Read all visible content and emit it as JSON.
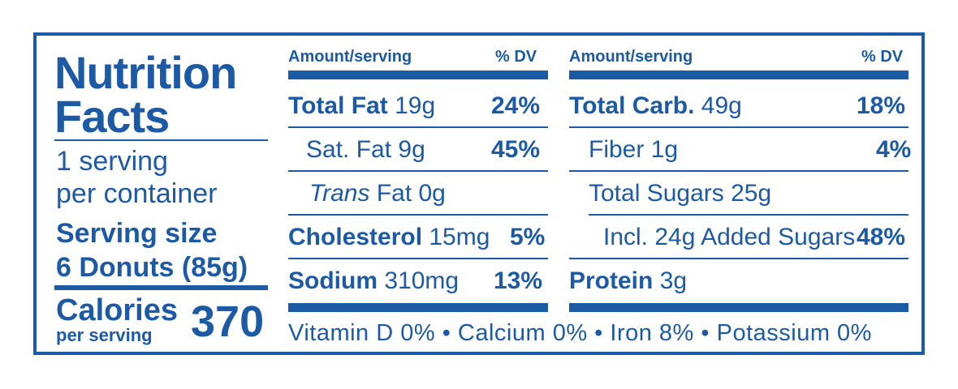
{
  "title_line1": "Nutrition",
  "title_line2": "Facts",
  "servings_line1": "1 serving",
  "servings_line2": "per container",
  "serving_size_label": "Serving size",
  "serving_size_value": "6 Donuts (85g)",
  "calories_label": "Calories",
  "calories_sublabel": "per serving",
  "calories_value": "370",
  "col1": {
    "header_amount": "Amount/serving",
    "header_dv": "% DV",
    "rows": [
      {
        "name": "Total Fat",
        "amount": "19g",
        "dv": "24%"
      },
      {
        "name": "Sat. Fat",
        "amount": "9g",
        "dv": "45%"
      },
      {
        "name": "Trans",
        "amount": "Fat 0g",
        "dv": ""
      },
      {
        "name": "Cholesterol",
        "amount": "15mg",
        "dv": "5%"
      },
      {
        "name": "Sodium",
        "amount": "310mg",
        "dv": "13%"
      }
    ]
  },
  "col2": {
    "header_amount": "Amount/serving",
    "header_dv": "% DV",
    "rows": [
      {
        "name": "Total Carb.",
        "amount": "49g",
        "dv": "18%"
      },
      {
        "name": "Fiber",
        "amount": "1g",
        "dv": "4%"
      },
      {
        "name": "Total Sugars",
        "amount": "25g",
        "dv": ""
      },
      {
        "name": "Incl. 24g Added Sugars",
        "amount": "",
        "dv": "48%"
      },
      {
        "name": "Protein",
        "amount": "3g",
        "dv": ""
      }
    ]
  },
  "footer": "Vitamin D 0% • Calcium 0% • Iron 8% • Potassium 0%",
  "colors": {
    "brand": "#1c5aa6",
    "background": "#ffffff"
  }
}
